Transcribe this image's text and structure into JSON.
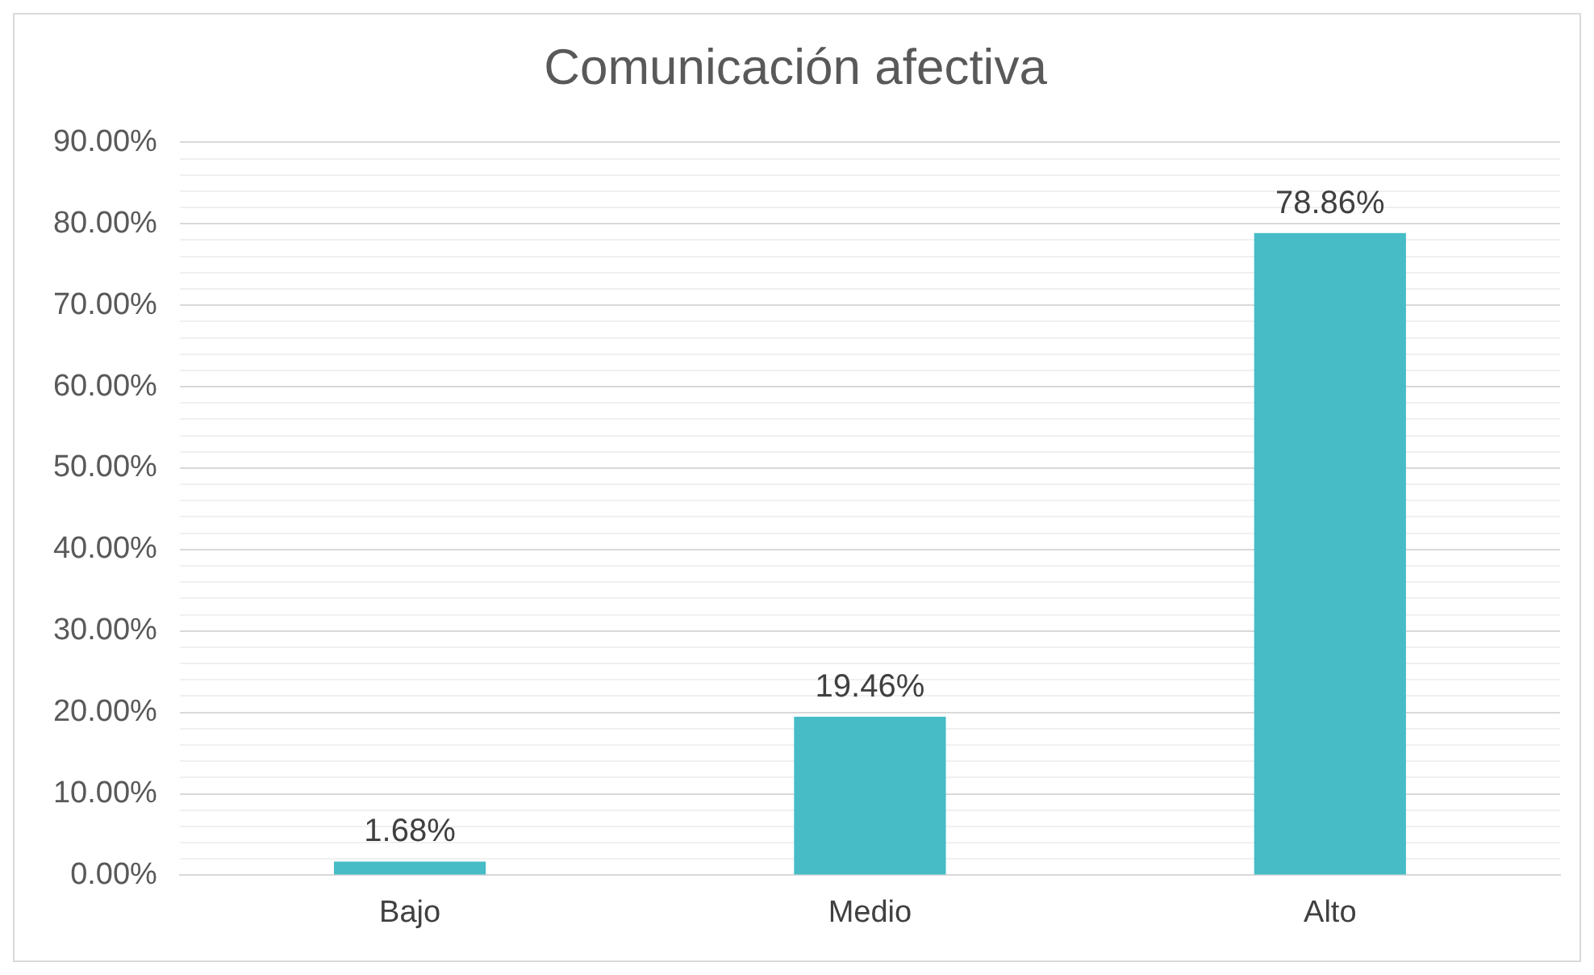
{
  "chart_data": {
    "type": "bar",
    "title": "Comunicación afectiva",
    "categories": [
      "Bajo",
      "Medio",
      "Alto"
    ],
    "values": [
      1.68,
      19.46,
      78.86
    ],
    "color": "#47bcc6",
    "value_labels": [
      "1.68%",
      "19.46%",
      "78.86%"
    ],
    "ylim": [
      0,
      90
    ],
    "yticks": [
      {
        "value": 0,
        "label": "0.00%"
      },
      {
        "value": 2,
        "label": null
      },
      {
        "value": 4,
        "label": null
      },
      {
        "value": 6,
        "label": null
      },
      {
        "value": 8,
        "label": null
      },
      {
        "value": 10,
        "label": "10.00%"
      },
      {
        "value": 12,
        "label": null
      },
      {
        "value": 14,
        "label": null
      },
      {
        "value": 16,
        "label": null
      },
      {
        "value": 18,
        "label": null
      },
      {
        "value": 20,
        "label": "20.00%"
      },
      {
        "value": 22,
        "label": null
      },
      {
        "value": 24,
        "label": null
      },
      {
        "value": 26,
        "label": null
      },
      {
        "value": 28,
        "label": null
      },
      {
        "value": 30,
        "label": "30.00%"
      },
      {
        "value": 32,
        "label": null
      },
      {
        "value": 34,
        "label": null
      },
      {
        "value": 36,
        "label": null
      },
      {
        "value": 38,
        "label": null
      },
      {
        "value": 40,
        "label": "40.00%"
      },
      {
        "value": 42,
        "label": null
      },
      {
        "value": 44,
        "label": null
      },
      {
        "value": 46,
        "label": null
      },
      {
        "value": 48,
        "label": null
      },
      {
        "value": 50,
        "label": "50.00%"
      },
      {
        "value": 52,
        "label": null
      },
      {
        "value": 54,
        "label": null
      },
      {
        "value": 56,
        "label": null
      },
      {
        "value": 58,
        "label": null
      },
      {
        "value": 60,
        "label": "60.00%"
      },
      {
        "value": 62,
        "label": null
      },
      {
        "value": 64,
        "label": null
      },
      {
        "value": 66,
        "label": null
      },
      {
        "value": 68,
        "label": null
      },
      {
        "value": 70,
        "label": "70.00%"
      },
      {
        "value": 72,
        "label": null
      },
      {
        "value": 74,
        "label": null
      },
      {
        "value": 76,
        "label": null
      },
      {
        "value": 78,
        "label": null
      },
      {
        "value": 80,
        "label": "80.00%"
      },
      {
        "value": 82,
        "label": null
      },
      {
        "value": 84,
        "label": null
      },
      {
        "value": 86,
        "label": null
      },
      {
        "value": 88,
        "label": null
      },
      {
        "value": 90,
        "label": "90.00%"
      }
    ],
    "grid": true
  }
}
